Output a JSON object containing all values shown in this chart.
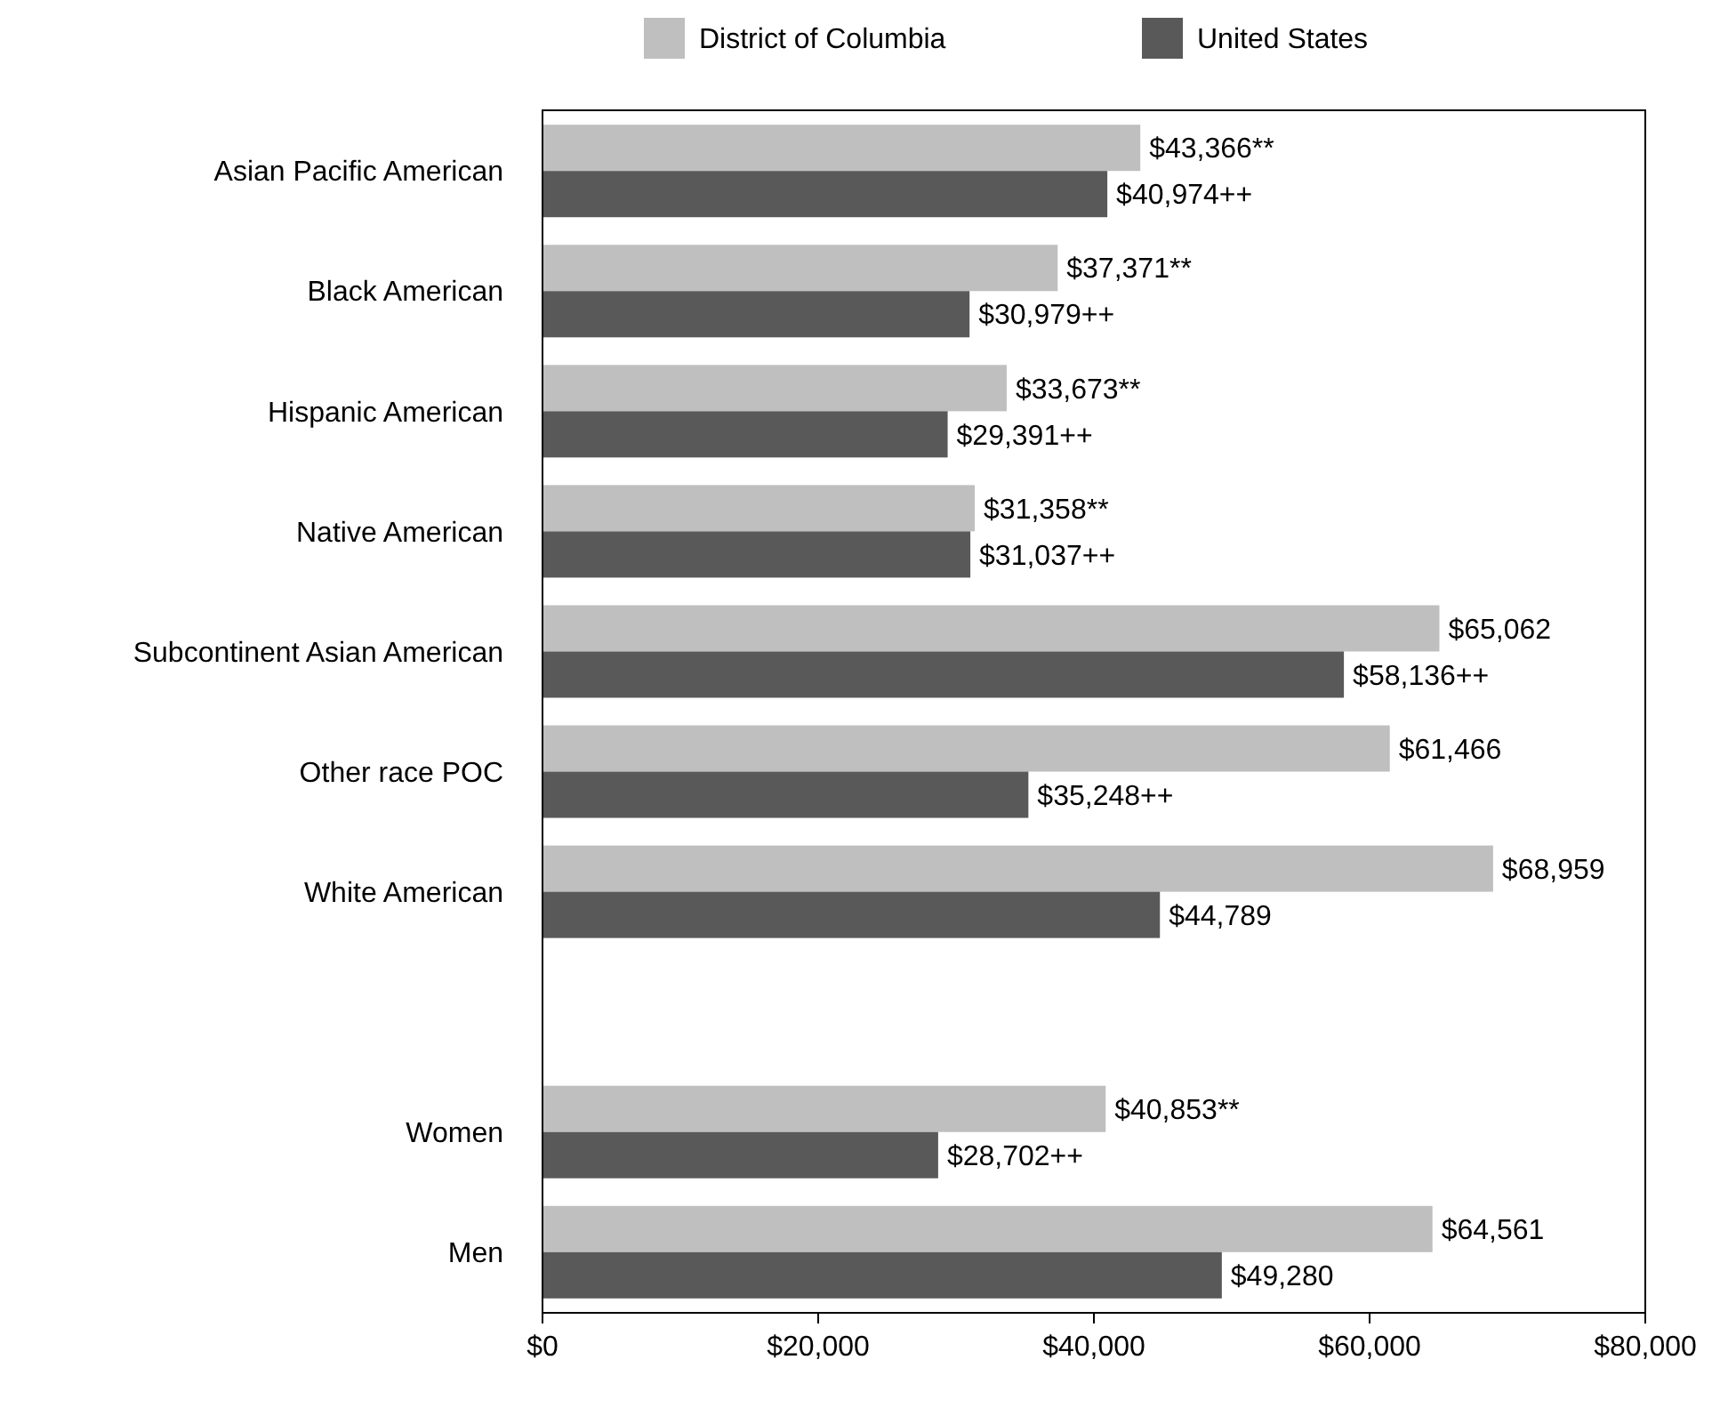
{
  "chart_data": {
    "type": "bar",
    "orientation": "horizontal",
    "categories": [
      "Asian Pacific American",
      "Black American",
      "Hispanic American",
      "Native American",
      "Subcontinent Asian American",
      "Other race POC",
      "White American",
      null,
      "Women",
      "Men"
    ],
    "series": [
      {
        "name": "District of Columbia",
        "color": "#bfbfbf",
        "values": [
          43366,
          37371,
          33673,
          31358,
          65062,
          61466,
          68959,
          null,
          40853,
          64561
        ],
        "value_labels": [
          "$43,366**",
          "$37,371**",
          "$33,673**",
          "$31,358**",
          "$65,062",
          "$61,466",
          "$68,959",
          null,
          "$40,853**",
          "$64,561"
        ]
      },
      {
        "name": "United States",
        "color": "#595959",
        "values": [
          40974,
          30979,
          29391,
          31037,
          58136,
          35248,
          44789,
          null,
          28702,
          49280
        ],
        "value_labels": [
          "$40,974++",
          "$30,979++",
          "$29,391++",
          "$31,037++",
          "$58,136++",
          "$35,248++",
          "$44,789",
          null,
          "$28,702++",
          "$49,280"
        ]
      }
    ],
    "xlim": [
      0,
      80000
    ],
    "xticks": [
      {
        "value": 0,
        "label": "$0"
      },
      {
        "value": 20000,
        "label": "$20,000"
      },
      {
        "value": 40000,
        "label": "$40,000"
      },
      {
        "value": 60000,
        "label": "$60,000"
      },
      {
        "value": 80000,
        "label": "$80,000"
      }
    ],
    "grid": false,
    "legend": "top"
  }
}
